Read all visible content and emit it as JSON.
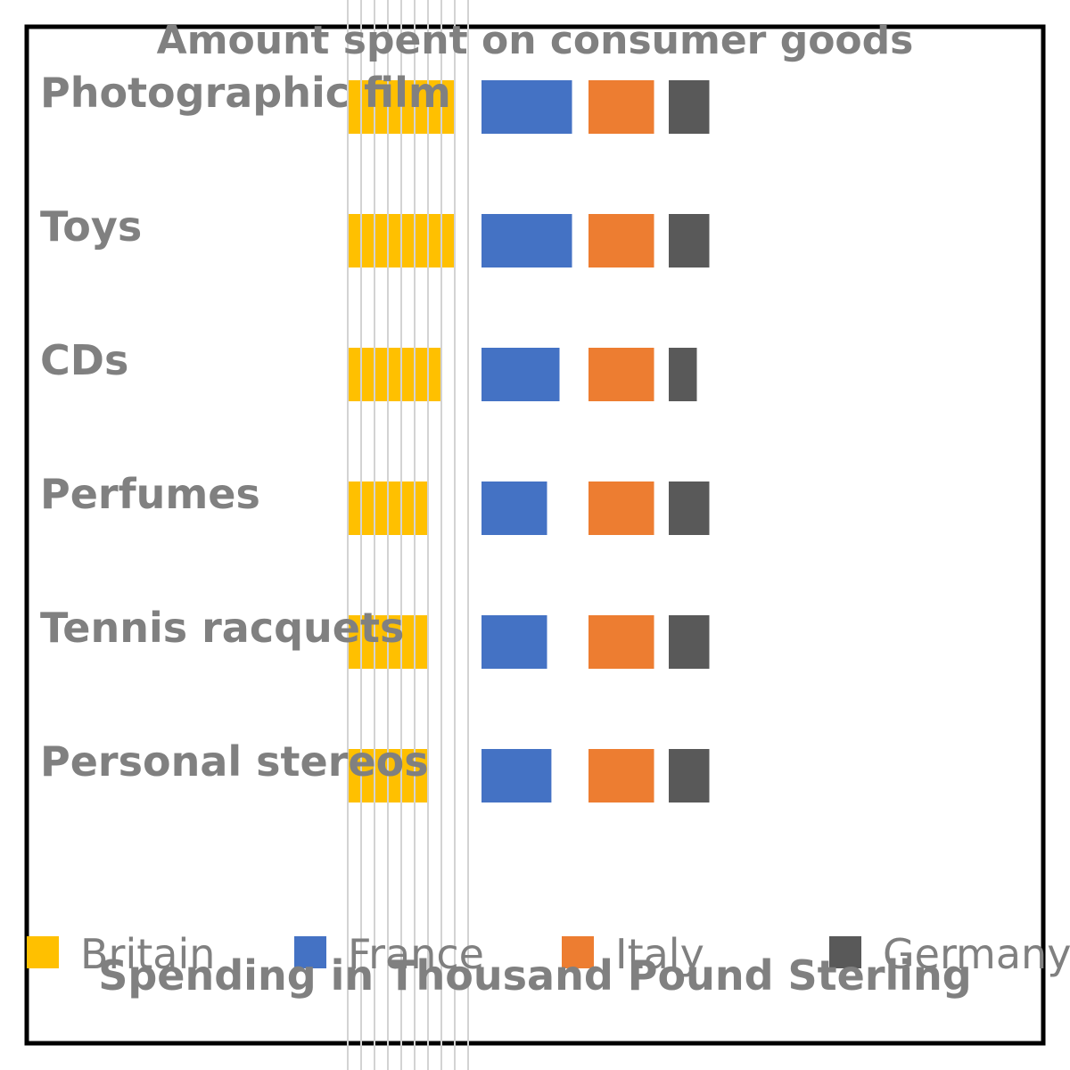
{
  "chart_data": {
    "type": "bar",
    "orientation": "horizontal",
    "title": "Amount spent on consumer goods",
    "xlabel": "Spending in Thousand Pound Sterling",
    "ylabel": "",
    "categories": [
      "Photographic film",
      "Toys",
      "CDs",
      "Perfumes",
      "Tennis racquets",
      "Personal stereos"
    ],
    "series": [
      {
        "name": "Britain",
        "color": "#FFC000",
        "values": [
          170,
          170,
          150,
          130,
          130,
          130
        ]
      },
      {
        "name": "France",
        "color": "#4472C4",
        "values": [
          145,
          145,
          125,
          105,
          105,
          112
        ]
      },
      {
        "name": "Italy",
        "color": "#ED7D31",
        "values": [
          105,
          105,
          105,
          105,
          105,
          105
        ]
      },
      {
        "name": "Germany",
        "color": "#595959",
        "values": [
          65,
          65,
          45,
          65,
          65,
          65
        ]
      }
    ],
    "grid": true,
    "legend": "bottom"
  }
}
